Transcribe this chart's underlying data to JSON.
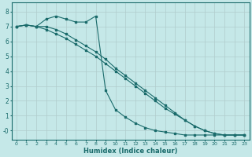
{
  "xlabel": "Humidex (Indice chaleur)",
  "bg_color": "#c5e8e8",
  "grid_color": "#b0cccc",
  "line_color": "#1a6b6b",
  "xlim": [
    -0.5,
    23.5
  ],
  "ylim": [
    -0.6,
    8.6
  ],
  "xticks": [
    0,
    1,
    2,
    3,
    4,
    5,
    6,
    7,
    8,
    9,
    10,
    11,
    12,
    13,
    14,
    15,
    16,
    17,
    18,
    19,
    20,
    21,
    22,
    23
  ],
  "yticks": [
    0,
    1,
    2,
    3,
    4,
    5,
    6,
    7,
    8
  ],
  "ytick_labels": [
    "-0",
    "1",
    "2",
    "3",
    "4",
    "5",
    "6",
    "7",
    "8"
  ],
  "line1_x": [
    0,
    1,
    2,
    3,
    4,
    5,
    6,
    7,
    8,
    9,
    10,
    11,
    12,
    13,
    14,
    15,
    16,
    17,
    18,
    19,
    20,
    21,
    22,
    23
  ],
  "line1_y": [
    7.0,
    7.1,
    7.0,
    6.8,
    6.5,
    6.2,
    5.8,
    5.4,
    5.0,
    4.5,
    4.0,
    3.5,
    3.0,
    2.5,
    2.0,
    1.5,
    1.1,
    0.7,
    0.3,
    0.0,
    -0.2,
    -0.3,
    -0.3,
    -0.3
  ],
  "line2_x": [
    0,
    1,
    2,
    3,
    4,
    5,
    6,
    7,
    8,
    9,
    10,
    11,
    12,
    13,
    14,
    15,
    16,
    17,
    18,
    19,
    20,
    21,
    22,
    23
  ],
  "line2_y": [
    7.0,
    7.1,
    7.0,
    7.0,
    6.8,
    6.5,
    6.1,
    5.7,
    5.3,
    4.8,
    4.2,
    3.7,
    3.2,
    2.7,
    2.2,
    1.7,
    1.2,
    0.7,
    0.3,
    0.0,
    -0.2,
    -0.3,
    -0.3,
    -0.3
  ],
  "line3_x": [
    0,
    1,
    2,
    3,
    4,
    5,
    6,
    7,
    8,
    9,
    10,
    11,
    12,
    13,
    14,
    15,
    16,
    17,
    18,
    19,
    20,
    21,
    22,
    23
  ],
  "line3_y": [
    7.0,
    7.1,
    7.0,
    7.5,
    7.7,
    7.5,
    7.3,
    7.3,
    7.7,
    2.7,
    1.4,
    0.9,
    0.5,
    0.2,
    0.0,
    -0.1,
    -0.2,
    -0.3,
    -0.3,
    -0.3,
    -0.3,
    -0.3,
    -0.3,
    -0.3
  ]
}
